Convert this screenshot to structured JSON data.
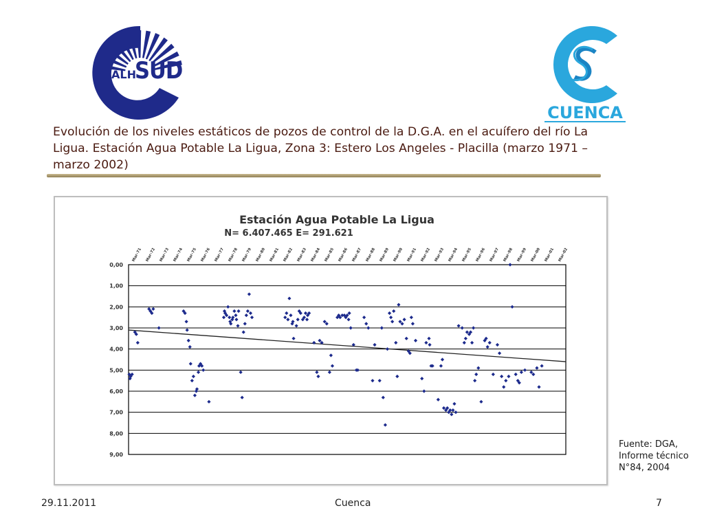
{
  "colors": {
    "title_text": "#4a1a10",
    "logo_navy": "#1f2a8a",
    "logo_cyan": "#2aa7dd",
    "logo_cyan_dark": "#1b84c4",
    "point_color": "#1c2a8c",
    "trend_color": "#222222",
    "grid_color": "#000000"
  },
  "logos": {
    "left": {
      "icon": "alhsud-logo-icon",
      "prefix": "ALH",
      "word": "SUD"
    },
    "right": {
      "icon": "cuenca-logo-icon",
      "word": "CUENCA"
    }
  },
  "slide": {
    "title": "Evolución de los niveles estáticos de pozos de control de la D.G.A. en el acuífero del río La Ligua. Estación Agua Potable La Ligua, Zona 3: Estero Los Angeles - Placilla (marzo 1971 – marzo 2002)"
  },
  "source_note": {
    "lines": [
      "Fuente: DGA,",
      "Informe técnico",
      "N°84, 2004"
    ]
  },
  "footer": {
    "date": "29.11.2011",
    "center": "Cuenca",
    "page": "7"
  },
  "chart_data": {
    "type": "scatter",
    "title": "Estación Agua Potable La Ligua",
    "subtitle": "N= 6.407.465 E= 291.621",
    "y_ticks": [
      "0,00",
      "1,00",
      "2,00",
      "3,00",
      "4,00",
      "5,00",
      "6,00",
      "7,00",
      "8,00",
      "9,00"
    ],
    "ylim": [
      0,
      9
    ],
    "y_inverted": true,
    "x_range_years": [
      1971.2,
      2002.2
    ],
    "x_tick_labels": [
      "Mar-71",
      "Mar-72",
      "Mar-73",
      "Mar-74",
      "Mar-75",
      "Mar-76",
      "Mar-77",
      "Mar-78",
      "Mar-79",
      "Mar-80",
      "Mar-81",
      "Mar-82",
      "Mar-83",
      "Mar-84",
      "Mar-85",
      "Mar-86",
      "Mar-87",
      "Mar-88",
      "Mar-89",
      "Mar-90",
      "Mar-91",
      "Mar-92",
      "Mar-93",
      "Mar-94",
      "Mar-95",
      "Mar-96",
      "Mar-97",
      "Mar-98",
      "Mar-99",
      "Mar-00",
      "Mar-01",
      "Mar-02"
    ],
    "grid": true,
    "trend_line": {
      "from": [
        1971.2,
        3.1
      ],
      "to": [
        2002.2,
        4.6
      ]
    },
    "series": [
      {
        "points": [
          [
            1971.25,
            5.2
          ],
          [
            1971.3,
            5.4
          ],
          [
            1971.35,
            5.3
          ],
          [
            1971.45,
            5.2
          ],
          [
            1971.65,
            3.2
          ],
          [
            1971.75,
            3.3
          ],
          [
            1971.85,
            3.7
          ],
          [
            1972.65,
            2.1
          ],
          [
            1972.75,
            2.2
          ],
          [
            1972.85,
            2.3
          ],
          [
            1972.95,
            2.1
          ],
          [
            1973.35,
            3.0
          ],
          [
            1975.1,
            2.2
          ],
          [
            1975.2,
            2.3
          ],
          [
            1975.3,
            2.7
          ],
          [
            1975.35,
            3.1
          ],
          [
            1975.45,
            3.6
          ],
          [
            1975.55,
            3.9
          ],
          [
            1975.6,
            4.7
          ],
          [
            1975.7,
            5.5
          ],
          [
            1975.8,
            5.3
          ],
          [
            1975.9,
            6.2
          ],
          [
            1976.0,
            6.0
          ],
          [
            1976.05,
            5.9
          ],
          [
            1976.15,
            5.1
          ],
          [
            1976.2,
            4.8
          ],
          [
            1976.3,
            4.7
          ],
          [
            1976.4,
            4.8
          ],
          [
            1976.5,
            5.0
          ],
          [
            1976.9,
            6.5
          ],
          [
            1977.95,
            2.5
          ],
          [
            1978.0,
            2.2
          ],
          [
            1978.05,
            2.3
          ],
          [
            1978.15,
            2.4
          ],
          [
            1978.25,
            2.0
          ],
          [
            1978.35,
            2.5
          ],
          [
            1978.4,
            2.7
          ],
          [
            1978.45,
            2.8
          ],
          [
            1978.55,
            2.6
          ],
          [
            1978.6,
            2.5
          ],
          [
            1978.7,
            2.2
          ],
          [
            1978.8,
            2.4
          ],
          [
            1978.85,
            2.6
          ],
          [
            1978.95,
            2.9
          ],
          [
            1979.0,
            2.2
          ],
          [
            1979.15,
            5.1
          ],
          [
            1979.25,
            6.3
          ],
          [
            1979.35,
            3.2
          ],
          [
            1979.45,
            2.8
          ],
          [
            1979.55,
            2.4
          ],
          [
            1979.65,
            2.2
          ],
          [
            1979.75,
            1.4
          ],
          [
            1979.85,
            2.3
          ],
          [
            1979.95,
            2.5
          ],
          [
            1982.3,
            2.5
          ],
          [
            1982.4,
            2.3
          ],
          [
            1982.5,
            2.6
          ],
          [
            1982.6,
            1.6
          ],
          [
            1982.7,
            2.4
          ],
          [
            1982.8,
            2.8
          ],
          [
            1982.85,
            2.7
          ],
          [
            1982.9,
            3.5
          ],
          [
            1983.1,
            2.9
          ],
          [
            1983.2,
            2.6
          ],
          [
            1983.3,
            2.2
          ],
          [
            1983.4,
            2.3
          ],
          [
            1983.55,
            2.6
          ],
          [
            1983.65,
            2.5
          ],
          [
            1983.75,
            2.3
          ],
          [
            1983.85,
            2.6
          ],
          [
            1983.9,
            2.4
          ],
          [
            1984.0,
            2.3
          ],
          [
            1984.35,
            3.7
          ],
          [
            1984.55,
            5.1
          ],
          [
            1984.65,
            5.3
          ],
          [
            1984.75,
            3.6
          ],
          [
            1984.9,
            3.7
          ],
          [
            1985.1,
            2.7
          ],
          [
            1985.25,
            2.8
          ],
          [
            1985.45,
            5.1
          ],
          [
            1985.55,
            4.3
          ],
          [
            1985.65,
            4.8
          ],
          [
            1986.0,
            2.5
          ],
          [
            1986.1,
            2.4
          ],
          [
            1986.2,
            2.5
          ],
          [
            1986.35,
            2.4
          ],
          [
            1986.5,
            2.4
          ],
          [
            1986.6,
            2.5
          ],
          [
            1986.7,
            2.4
          ],
          [
            1986.8,
            2.6
          ],
          [
            1986.85,
            2.3
          ],
          [
            1986.95,
            3.0
          ],
          [
            1987.15,
            3.8
          ],
          [
            1987.35,
            5.0
          ],
          [
            1987.45,
            5.0
          ],
          [
            1987.9,
            2.5
          ],
          [
            1988.05,
            2.8
          ],
          [
            1988.2,
            3.0
          ],
          [
            1988.5,
            5.5
          ],
          [
            1988.65,
            3.8
          ],
          [
            1989.0,
            5.5
          ],
          [
            1989.15,
            3.0
          ],
          [
            1989.25,
            6.3
          ],
          [
            1989.4,
            7.6
          ],
          [
            1989.55,
            4.0
          ],
          [
            1989.7,
            2.3
          ],
          [
            1989.8,
            2.5
          ],
          [
            1989.9,
            2.7
          ],
          [
            1990.0,
            2.2
          ],
          [
            1990.15,
            3.7
          ],
          [
            1990.25,
            5.3
          ],
          [
            1990.35,
            1.9
          ],
          [
            1990.45,
            2.7
          ],
          [
            1990.6,
            2.8
          ],
          [
            1990.75,
            2.6
          ],
          [
            1990.9,
            3.5
          ],
          [
            1991.05,
            4.1
          ],
          [
            1991.15,
            4.2
          ],
          [
            1991.25,
            2.5
          ],
          [
            1991.35,
            2.8
          ],
          [
            1991.55,
            3.6
          ],
          [
            1992.0,
            5.4
          ],
          [
            1992.15,
            6.0
          ],
          [
            1992.3,
            3.7
          ],
          [
            1992.5,
            3.5
          ],
          [
            1992.55,
            3.8
          ],
          [
            1992.65,
            4.8
          ],
          [
            1992.75,
            4.8
          ],
          [
            1993.15,
            6.4
          ],
          [
            1993.35,
            4.8
          ],
          [
            1993.45,
            4.5
          ],
          [
            1993.55,
            6.8
          ],
          [
            1993.7,
            6.9
          ],
          [
            1993.8,
            6.8
          ],
          [
            1993.9,
            7.0
          ],
          [
            1994.0,
            6.9
          ],
          [
            1994.1,
            7.1
          ],
          [
            1994.2,
            6.9
          ],
          [
            1994.3,
            6.6
          ],
          [
            1994.4,
            7.0
          ],
          [
            1994.6,
            2.9
          ],
          [
            1994.85,
            3.0
          ],
          [
            1995.0,
            3.7
          ],
          [
            1995.1,
            3.5
          ],
          [
            1995.2,
            3.2
          ],
          [
            1995.35,
            3.3
          ],
          [
            1995.45,
            3.2
          ],
          [
            1995.55,
            3.7
          ],
          [
            1995.65,
            3.0
          ],
          [
            1995.75,
            5.5
          ],
          [
            1995.85,
            5.2
          ],
          [
            1996.0,
            4.9
          ],
          [
            1996.2,
            6.5
          ],
          [
            1996.45,
            3.6
          ],
          [
            1996.55,
            3.5
          ],
          [
            1996.65,
            3.9
          ],
          [
            1996.8,
            3.7
          ],
          [
            1997.05,
            5.2
          ],
          [
            1997.35,
            3.8
          ],
          [
            1997.5,
            4.2
          ],
          [
            1997.65,
            5.3
          ],
          [
            1997.8,
            5.8
          ],
          [
            1997.95,
            5.5
          ],
          [
            1998.15,
            5.3
          ],
          [
            1998.25,
            0.0
          ],
          [
            1998.4,
            2.0
          ],
          [
            1998.65,
            5.2
          ],
          [
            1998.8,
            5.5
          ],
          [
            1998.9,
            5.6
          ],
          [
            1999.05,
            5.1
          ],
          [
            1999.3,
            5.0
          ],
          [
            1999.75,
            5.1
          ],
          [
            1999.9,
            5.2
          ],
          [
            2000.15,
            4.9
          ],
          [
            2000.3,
            5.8
          ],
          [
            2000.5,
            4.8
          ]
        ]
      }
    ]
  }
}
